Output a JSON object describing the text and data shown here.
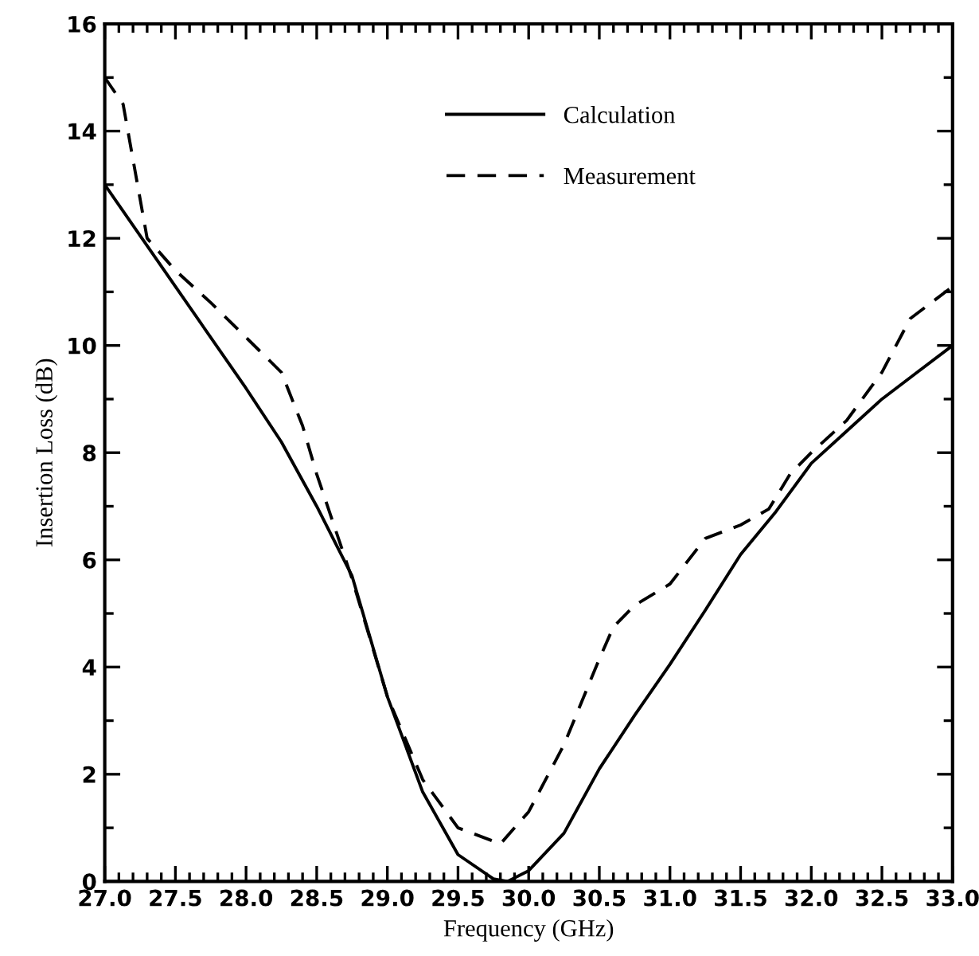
{
  "chart_data": {
    "type": "line",
    "xlabel": "Frequency (GHz)",
    "ylabel": "Insertion Loss (dB)",
    "xlim": [
      27.0,
      33.0
    ],
    "ylim": [
      0,
      16
    ],
    "xticks": [
      {
        "value": 27.0,
        "label": "27.0"
      },
      {
        "value": 27.5,
        "label": "27.5"
      },
      {
        "value": 28.0,
        "label": "28.0"
      },
      {
        "value": 28.5,
        "label": "28.5"
      },
      {
        "value": 29.0,
        "label": "29.0"
      },
      {
        "value": 29.5,
        "label": "29.5"
      },
      {
        "value": 30.0,
        "label": "30.0"
      },
      {
        "value": 30.5,
        "label": "30.5"
      },
      {
        "value": 31.0,
        "label": "31.0"
      },
      {
        "value": 31.5,
        "label": "31.5"
      },
      {
        "value": 32.0,
        "label": "32.0"
      },
      {
        "value": 32.5,
        "label": "32.5"
      },
      {
        "value": 33.0,
        "label": "33.0"
      }
    ],
    "yticks": [
      0,
      2,
      4,
      6,
      8,
      10,
      12,
      14,
      16
    ],
    "grid": false,
    "legend": "top",
    "marker": "none",
    "series": [
      {
        "name": "Calculation",
        "color": "#000000",
        "line_style": "solid",
        "x": [
          27.0,
          27.5,
          28.0,
          28.25,
          28.5,
          28.75,
          29.0,
          29.25,
          29.5,
          29.75,
          29.85,
          30.0,
          30.25,
          30.5,
          30.75,
          31.0,
          31.25,
          31.5,
          31.75,
          32.0,
          32.25,
          32.5,
          32.75,
          33.0
        ],
        "values": [
          13.0,
          11.1,
          9.2,
          8.2,
          7.0,
          5.7,
          3.45,
          1.67,
          0.5,
          0.05,
          0.0,
          0.2,
          0.9,
          2.1,
          3.1,
          4.05,
          5.06,
          6.1,
          6.9,
          7.8,
          8.4,
          9.0,
          9.5,
          10.0
        ]
      },
      {
        "name": "Measurement",
        "color": "#000000",
        "line_style": "dashed",
        "x": [
          27.0,
          27.13,
          27.3,
          27.5,
          27.75,
          28.0,
          28.25,
          28.4,
          28.5,
          28.75,
          29.0,
          29.25,
          29.5,
          29.8,
          30.0,
          30.25,
          30.5,
          30.6,
          30.75,
          31.0,
          31.25,
          31.5,
          31.7,
          31.85,
          32.0,
          32.25,
          32.5,
          32.7,
          33.0
        ],
        "values": [
          15.0,
          14.5,
          12.0,
          11.4,
          10.8,
          10.15,
          9.5,
          8.5,
          7.6,
          5.65,
          3.45,
          1.9,
          1.0,
          0.7,
          1.3,
          2.55,
          4.15,
          4.75,
          5.15,
          5.55,
          6.4,
          6.65,
          6.95,
          7.6,
          8.0,
          8.6,
          9.5,
          10.5,
          11.1
        ]
      }
    ]
  }
}
